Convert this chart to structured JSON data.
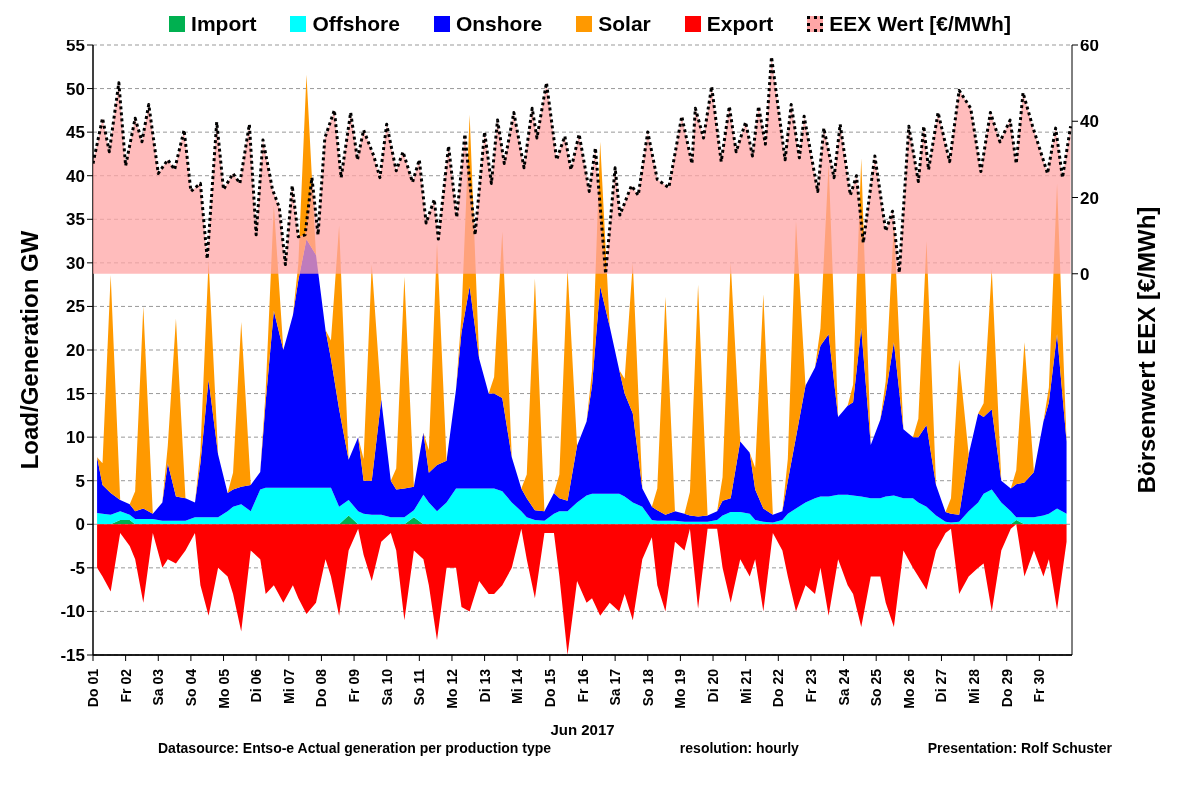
{
  "chart_data": [
    {
      "type": "area",
      "stacked": true,
      "grid": "y",
      "legend": "top",
      "ylabel": "Load/Generation  GW",
      "annotations": [
        "Datasource: Entso-e  Actual generation per production type",
        "resolution: hourly",
        "Presentation:  Rolf Schuster"
      ],
      "xlim": [
        "2017-06-01",
        "2017-07-01"
      ],
      "xticks": [
        {
          "value": "2017-06-01",
          "label": "Do 01"
        },
        {
          "value": "2017-06-02",
          "label": "Fr 02"
        },
        {
          "value": "2017-06-03",
          "label": "Sa 03"
        },
        {
          "value": "2017-06-04",
          "label": "So 04"
        },
        {
          "value": "2017-06-05",
          "label": "Mo 05"
        },
        {
          "value": "2017-06-06",
          "label": "Di 06"
        },
        {
          "value": "2017-06-07",
          "label": "Mi 07"
        },
        {
          "value": "2017-06-08",
          "label": "Do 08"
        },
        {
          "value": "2017-06-09",
          "label": "Fr 09"
        },
        {
          "value": "2017-06-10",
          "label": "Sa 10"
        },
        {
          "value": "2017-06-11",
          "label": "So 11"
        },
        {
          "value": "2017-06-12",
          "label": "Mo 12"
        },
        {
          "value": "2017-06-13",
          "label": "Di 13"
        },
        {
          "value": "2017-06-14",
          "label": "Mi 14"
        },
        {
          "value": "2017-06-15",
          "label": "Do 15"
        },
        {
          "value": "2017-06-16",
          "label": "Fr 16"
        },
        {
          "value": "2017-06-17",
          "label": "Sa 17"
        },
        {
          "value": "2017-06-18",
          "label": "So 18"
        },
        {
          "value": "2017-06-19",
          "label": "Mo 19"
        },
        {
          "value": "2017-06-20",
          "label": "Di 20"
        },
        {
          "value": "2017-06-21",
          "label": "Mi 21"
        },
        {
          "value": "2017-06-22",
          "label": "Do 22"
        },
        {
          "value": "2017-06-23",
          "label": "Fr 23"
        },
        {
          "value": "2017-06-24",
          "label": "Sa 24"
        },
        {
          "value": "2017-06-25",
          "label": "So 25"
        },
        {
          "value": "2017-06-26",
          "label": "Mo 26"
        },
        {
          "value": "2017-06-27",
          "label": "Di 27"
        },
        {
          "value": "2017-06-28",
          "label": "Mi 28"
        },
        {
          "value": "2017-06-29",
          "label": "Do 29"
        },
        {
          "value": "2017-06-30",
          "label": "Fr 30"
        }
      ],
      "ylim": [
        -15,
        55
      ],
      "yticks": [
        -15,
        -10,
        -5,
        0,
        5,
        10,
        15,
        20,
        25,
        30,
        35,
        40,
        45,
        50,
        55
      ],
      "x": [
        "2017-06-01T03:00",
        "2017-06-01T07:00",
        "2017-06-01T13:00",
        "2017-06-01T20:00",
        "2017-06-02T03:00",
        "2017-06-02T07:00",
        "2017-06-02T13:00",
        "2017-06-02T20:00",
        "2017-06-03T03:00",
        "2017-06-03T07:00",
        "2017-06-03T13:00",
        "2017-06-03T20:00",
        "2017-06-04T03:00",
        "2017-06-04T07:00",
        "2017-06-04T13:00",
        "2017-06-04T20:00",
        "2017-06-05T03:00",
        "2017-06-05T07:00",
        "2017-06-05T13:00",
        "2017-06-05T20:00",
        "2017-06-06T03:00",
        "2017-06-06T07:00",
        "2017-06-06T13:00",
        "2017-06-06T20:00",
        "2017-06-07T03:00",
        "2017-06-07T07:00",
        "2017-06-07T13:00",
        "2017-06-07T20:00",
        "2017-06-08T03:00",
        "2017-06-08T07:00",
        "2017-06-08T13:00",
        "2017-06-08T20:00",
        "2017-06-09T03:00",
        "2017-06-09T07:00",
        "2017-06-09T13:00",
        "2017-06-09T20:00",
        "2017-06-10T03:00",
        "2017-06-10T07:00",
        "2017-06-10T13:00",
        "2017-06-10T20:00",
        "2017-06-11T03:00",
        "2017-06-11T07:00",
        "2017-06-11T13:00",
        "2017-06-11T20:00",
        "2017-06-12T03:00",
        "2017-06-12T07:00",
        "2017-06-12T13:00",
        "2017-06-12T20:00",
        "2017-06-13T03:00",
        "2017-06-13T07:00",
        "2017-06-13T13:00",
        "2017-06-13T20:00",
        "2017-06-14T03:00",
        "2017-06-14T07:00",
        "2017-06-14T13:00",
        "2017-06-14T20:00",
        "2017-06-15T03:00",
        "2017-06-15T07:00",
        "2017-06-15T13:00",
        "2017-06-15T20:00",
        "2017-06-16T03:00",
        "2017-06-16T07:00",
        "2017-06-16T13:00",
        "2017-06-16T20:00",
        "2017-06-17T03:00",
        "2017-06-17T07:00",
        "2017-06-17T13:00",
        "2017-06-17T20:00",
        "2017-06-18T03:00",
        "2017-06-18T07:00",
        "2017-06-18T13:00",
        "2017-06-18T20:00",
        "2017-06-19T03:00",
        "2017-06-19T07:00",
        "2017-06-19T13:00",
        "2017-06-19T20:00",
        "2017-06-20T03:00",
        "2017-06-20T07:00",
        "2017-06-20T13:00",
        "2017-06-20T20:00",
        "2017-06-21T03:00",
        "2017-06-21T07:00",
        "2017-06-21T13:00",
        "2017-06-21T20:00",
        "2017-06-22T03:00",
        "2017-06-22T07:00",
        "2017-06-22T13:00",
        "2017-06-22T20:00",
        "2017-06-23T03:00",
        "2017-06-23T07:00",
        "2017-06-23T13:00",
        "2017-06-23T20:00",
        "2017-06-24T03:00",
        "2017-06-24T07:00",
        "2017-06-24T13:00",
        "2017-06-24T20:00",
        "2017-06-25T03:00",
        "2017-06-25T07:00",
        "2017-06-25T13:00",
        "2017-06-25T20:00",
        "2017-06-26T03:00",
        "2017-06-26T07:00",
        "2017-06-26T13:00",
        "2017-06-26T20:00",
        "2017-06-27T03:00",
        "2017-06-27T07:00",
        "2017-06-27T13:00",
        "2017-06-27T20:00",
        "2017-06-28T03:00",
        "2017-06-28T07:00",
        "2017-06-28T13:00",
        "2017-06-28T20:00",
        "2017-06-29T03:00",
        "2017-06-29T07:00",
        "2017-06-29T13:00",
        "2017-06-29T20:00",
        "2017-06-30T03:00",
        "2017-06-30T07:00",
        "2017-06-30T13:00",
        "2017-06-30T20:00"
      ],
      "series": [
        {
          "name": "Import",
          "color": "#00b050",
          "values": [
            0,
            0,
            0,
            0.5,
            0.5,
            0,
            0,
            0,
            0,
            0,
            0,
            0,
            0,
            0,
            0,
            0,
            0,
            0,
            0,
            0,
            0,
            0,
            0,
            0,
            0,
            0,
            0,
            0,
            0,
            0,
            0,
            1.0,
            0,
            0,
            0,
            0,
            0,
            0,
            0,
            0.8,
            0,
            0,
            0,
            0,
            0,
            0,
            0,
            0,
            0,
            0,
            0,
            0,
            0,
            0,
            0,
            0,
            0,
            0,
            0,
            0,
            0,
            0,
            0,
            0,
            0,
            0,
            0,
            0,
            0,
            0,
            0,
            0,
            0,
            0,
            0,
            0,
            0,
            0,
            0,
            0,
            0,
            0,
            0,
            0,
            0,
            0,
            0,
            0,
            0,
            0,
            0,
            0,
            0,
            0,
            0,
            0,
            0,
            0,
            0,
            0,
            0,
            0,
            0,
            0,
            0,
            0,
            0,
            0,
            0,
            0,
            0,
            0,
            0,
            0.5,
            0,
            0,
            0,
            0,
            0,
            0
          ]
        },
        {
          "name": "Offshore",
          "color": "#00ffff",
          "values": [
            1.3,
            1.2,
            1.1,
            1.0,
            0.6,
            0.6,
            0.6,
            0.6,
            0.4,
            0.4,
            0.4,
            0.4,
            0.8,
            0.8,
            0.8,
            0.8,
            1.5,
            2.0,
            2.3,
            1.5,
            4.0,
            4.2,
            4.2,
            4.2,
            4.2,
            4.2,
            4.2,
            4.2,
            4.2,
            4.2,
            2.0,
            1.8,
            1.5,
            1.2,
            1.1,
            1.1,
            0.8,
            0.8,
            0.8,
            0.8,
            3.4,
            2.5,
            1.5,
            2.5,
            4.1,
            4.1,
            4.1,
            4.1,
            4.1,
            4.1,
            3.8,
            2.5,
            1.5,
            0.8,
            0.5,
            0.4,
            1.2,
            1.5,
            1.5,
            2.5,
            3.3,
            3.5,
            3.5,
            3.5,
            3.5,
            3.2,
            2.5,
            2.0,
            0.5,
            0.4,
            0.4,
            0.4,
            0.3,
            0.3,
            0.3,
            0.3,
            0.5,
            1.0,
            1.4,
            1.4,
            1.2,
            0.5,
            0.3,
            0.2,
            0.5,
            1.2,
            1.8,
            2.5,
            3.0,
            3.2,
            3.2,
            3.4,
            3.4,
            3.3,
            3.2,
            3.0,
            3.0,
            3.2,
            3.3,
            3.0,
            3.0,
            2.5,
            2.0,
            1.0,
            0.3,
            0.2,
            0.3,
            1.5,
            2.5,
            3.5,
            4.0,
            2.5,
            1.5,
            0.3,
            0.8,
            0.8,
            1.0,
            1.2,
            1.8,
            1.2
          ]
        },
        {
          "name": "Onshore",
          "color": "#0000ff",
          "values": [
            6.4,
            3.3,
            2.5,
            1.3,
            1.2,
            0.9,
            1.2,
            0.6,
            2.1,
            6.6,
            2.8,
            2.6,
            1.7,
            6.2,
            15.8,
            7.2,
            2.1,
            2.0,
            2.0,
            3.0,
            2.0,
            9.9,
            20.3,
            15.8,
            19.8,
            23.8,
            28.5,
            26.7,
            18.1,
            14.8,
            11.2,
            4.6,
            8.5,
            3.8,
            3.9,
            13.2,
            4.2,
            3.2,
            3.3,
            2.7,
            7.1,
            3.4,
            5.3,
            4.8,
            11.4,
            17.9,
            23.2,
            14.9,
            10.9,
            10.9,
            10.7,
            5.2,
            2.6,
            2.2,
            1.1,
            1.1,
            2.4,
            1.5,
            1.2,
            6.5,
            8.5,
            12.4,
            23.8,
            19.2,
            14.2,
            11.8,
            10.2,
            2.1,
            1.5,
            1.2,
            0.7,
            1.1,
            0.9,
            0.7,
            0.6,
            0.7,
            1.0,
            1.7,
            1.6,
            8.1,
            7.0,
            3.5,
            1.5,
            0.9,
            1.0,
            3.8,
            8.2,
            13.4,
            15.0,
            17.3,
            18.6,
            8.9,
            10.2,
            10.7,
            19.3,
            6.1,
            9.0,
            11.8,
            17.6,
            7.9,
            7.0,
            7.5,
            9.4,
            3.5,
            1.1,
            1.0,
            0.8,
            6.5,
            10.2,
            8.8,
            9.2,
            2.5,
            2.6,
            3.8,
            4.0,
            5.2,
            10.8,
            12.8,
            20.0,
            8.3
          ]
        },
        {
          "name": "Solar",
          "color": "#ff9900",
          "values": [
            0,
            2.5,
            25.0,
            0,
            0,
            2.3,
            23.2,
            0,
            0,
            2.0,
            20.4,
            0,
            0,
            1.4,
            13.6,
            0,
            0,
            1.9,
            18.9,
            0,
            0,
            1.2,
            12.1,
            0,
            0,
            1.9,
            18.9,
            0,
            0,
            2.1,
            21.1,
            0,
            0,
            2.5,
            24.8,
            0,
            0,
            2.4,
            24.3,
            0,
            0,
            2.6,
            25.5,
            0,
            0,
            2.0,
            19.7,
            0,
            0,
            1.9,
            19.1,
            0,
            0,
            2.7,
            26.6,
            0,
            0,
            2.7,
            26.6,
            0,
            0,
            1.7,
            16.6,
            0,
            0,
            1.7,
            17.3,
            0,
            0,
            2.5,
            25.0,
            0,
            0,
            2.7,
            26.6,
            0,
            0,
            2.7,
            27.0,
            0,
            0,
            2.5,
            24.6,
            0,
            0,
            2.5,
            24.8,
            0,
            0,
            2.0,
            19.6,
            0,
            0,
            2.0,
            19.5,
            0,
            0,
            1.4,
            13.6,
            0,
            0,
            2.1,
            21.1,
            0,
            0,
            1.8,
            17.8,
            0,
            0,
            1.6,
            16.1,
            0,
            0,
            1.6,
            16.1,
            0,
            0,
            1.7,
            17.3,
            0
          ]
        }
      ]
    },
    {
      "type": "area",
      "legend": "top",
      "xlim": [
        "2017-06-01",
        "2017-07-01"
      ],
      "ylim": [
        -15,
        55
      ],
      "x": [
        "2017-06-01T03:00",
        "2017-06-01T07:00",
        "2017-06-01T13:00",
        "2017-06-01T20:00",
        "2017-06-02T03:00",
        "2017-06-02T07:00",
        "2017-06-02T13:00",
        "2017-06-02T20:00",
        "2017-06-03T03:00",
        "2017-06-03T07:00",
        "2017-06-03T13:00",
        "2017-06-03T20:00",
        "2017-06-04T03:00",
        "2017-06-04T07:00",
        "2017-06-04T13:00",
        "2017-06-04T20:00",
        "2017-06-05T03:00",
        "2017-06-05T07:00",
        "2017-06-05T13:00",
        "2017-06-05T20:00",
        "2017-06-06T03:00",
        "2017-06-06T07:00",
        "2017-06-06T13:00",
        "2017-06-06T20:00",
        "2017-06-07T03:00",
        "2017-06-07T07:00",
        "2017-06-07T13:00",
        "2017-06-07T20:00",
        "2017-06-08T03:00",
        "2017-06-08T07:00",
        "2017-06-08T13:00",
        "2017-06-08T20:00",
        "2017-06-09T03:00",
        "2017-06-09T07:00",
        "2017-06-09T13:00",
        "2017-06-09T20:00",
        "2017-06-10T03:00",
        "2017-06-10T07:00",
        "2017-06-10T13:00",
        "2017-06-10T20:00",
        "2017-06-11T03:00",
        "2017-06-11T07:00",
        "2017-06-11T13:00",
        "2017-06-11T20:00",
        "2017-06-12T03:00",
        "2017-06-12T07:00",
        "2017-06-12T13:00",
        "2017-06-12T20:00",
        "2017-06-13T03:00",
        "2017-06-13T07:00",
        "2017-06-13T13:00",
        "2017-06-13T20:00",
        "2017-06-14T03:00",
        "2017-06-14T07:00",
        "2017-06-14T13:00",
        "2017-06-14T20:00",
        "2017-06-15T03:00",
        "2017-06-15T07:00",
        "2017-06-15T13:00",
        "2017-06-15T20:00",
        "2017-06-16T03:00",
        "2017-06-16T07:00",
        "2017-06-16T13:00",
        "2017-06-16T20:00",
        "2017-06-17T03:00",
        "2017-06-17T07:00",
        "2017-06-17T13:00",
        "2017-06-17T20:00",
        "2017-06-18T03:00",
        "2017-06-18T07:00",
        "2017-06-18T13:00",
        "2017-06-18T20:00",
        "2017-06-19T03:00",
        "2017-06-19T07:00",
        "2017-06-19T13:00",
        "2017-06-19T20:00",
        "2017-06-20T03:00",
        "2017-06-20T07:00",
        "2017-06-20T13:00",
        "2017-06-20T20:00",
        "2017-06-21T03:00",
        "2017-06-21T07:00",
        "2017-06-21T13:00",
        "2017-06-21T20:00",
        "2017-06-22T03:00",
        "2017-06-22T07:00",
        "2017-06-22T13:00",
        "2017-06-22T20:00",
        "2017-06-23T03:00",
        "2017-06-23T07:00",
        "2017-06-23T13:00",
        "2017-06-23T20:00",
        "2017-06-24T03:00",
        "2017-06-24T07:00",
        "2017-06-24T13:00",
        "2017-06-24T20:00",
        "2017-06-25T03:00",
        "2017-06-25T07:00",
        "2017-06-25T13:00",
        "2017-06-25T20:00",
        "2017-06-26T03:00",
        "2017-06-26T07:00",
        "2017-06-26T13:00",
        "2017-06-26T20:00",
        "2017-06-27T03:00",
        "2017-06-27T07:00",
        "2017-06-27T13:00",
        "2017-06-27T20:00",
        "2017-06-28T03:00",
        "2017-06-28T07:00",
        "2017-06-28T13:00",
        "2017-06-28T20:00",
        "2017-06-29T03:00",
        "2017-06-29T07:00",
        "2017-06-29T13:00",
        "2017-06-29T20:00",
        "2017-06-30T03:00",
        "2017-06-30T07:00",
        "2017-06-30T13:00",
        "2017-06-30T20:00"
      ],
      "series": [
        {
          "name": "Export",
          "color": "#ff0000",
          "values": [
            -5,
            -6,
            -7.7,
            -1,
            -2.5,
            -4,
            -9,
            -1,
            -5,
            -4,
            -4.5,
            -3,
            -1,
            -7,
            -10.5,
            -5,
            -6,
            -8,
            -12.3,
            -3,
            -4,
            -8,
            -7,
            -9,
            -7,
            -8.5,
            -10.3,
            -9,
            -4,
            -6,
            -10.5,
            -3,
            -0.5,
            -3.5,
            -6.5,
            -2,
            -1,
            -3,
            -11,
            -3,
            -4,
            -7,
            -13.3,
            -5,
            -5,
            -9.5,
            -10,
            -6.5,
            -8,
            -8,
            -7,
            -5,
            -0.5,
            -4,
            -8.5,
            -1,
            -1,
            -6,
            -15,
            -6.5,
            -9,
            -8.5,
            -10.5,
            -9,
            -10,
            -8,
            -11,
            -4,
            -1.5,
            -7,
            -10,
            -2,
            -3,
            -0.5,
            -9.7,
            -0.5,
            -0.5,
            -5,
            -9,
            -4,
            -6,
            -4,
            -10,
            -1,
            -3,
            -6,
            -10,
            -7,
            -8,
            -5,
            -10.5,
            -4,
            -7,
            -8,
            -11.8,
            -6,
            -6,
            -9,
            -11.8,
            -3,
            -5,
            -6,
            -7.5,
            -3,
            -1,
            -0.5,
            -8,
            -6,
            -5,
            -4.5,
            -10,
            -3,
            -0.5,
            0,
            -6,
            -3,
            -6,
            -4,
            -9.8,
            -2
          ]
        }
      ]
    },
    {
      "type": "area",
      "legend": "top",
      "xlabel": "Jun 2017",
      "y2label": "Börsenwert  EEX  [€/MWh]",
      "xlim": [
        "2017-06-01",
        "2017-07-01"
      ],
      "y2lim": [
        -100,
        60
      ],
      "y2ticks": [
        0,
        20,
        40,
        60
      ],
      "series": [
        {
          "name": "EEX Wert [€/MWh]",
          "axis": "y2",
          "color": "#ffa6a6",
          "line_style": "dotted",
          "x": [
            "2017-06-01T00:00",
            "2017-06-01T07:00",
            "2017-06-01T12:00",
            "2017-06-01T19:00",
            "2017-06-02T00:00",
            "2017-06-02T07:00",
            "2017-06-02T12:00",
            "2017-06-02T17:00",
            "2017-06-03T00:00",
            "2017-06-03T07:00",
            "2017-06-03T12:00",
            "2017-06-03T19:00",
            "2017-06-04T00:00",
            "2017-06-04T07:00",
            "2017-06-04T12:00",
            "2017-06-04T19:00",
            "2017-06-05T00:00",
            "2017-06-05T07:00",
            "2017-06-05T12:00",
            "2017-06-05T19:00",
            "2017-06-06T00:00",
            "2017-06-06T05:00",
            "2017-06-06T12:00",
            "2017-06-06T17:00",
            "2017-06-06T21:30",
            "2017-06-07T02:30",
            "2017-06-07T07:00",
            "2017-06-07T12:00",
            "2017-06-07T17:00",
            "2017-06-07T21:30",
            "2017-06-08T02:30",
            "2017-06-08T09:30",
            "2017-06-08T14:30",
            "2017-06-08T21:30",
            "2017-06-09T02:30",
            "2017-06-09T07:00",
            "2017-06-09T14:30",
            "2017-06-09T19:00",
            "2017-06-10T00:00",
            "2017-06-10T07:00",
            "2017-06-10T12:00",
            "2017-06-10T19:00",
            "2017-06-11T00:00",
            "2017-06-11T05:00",
            "2017-06-11T11:00",
            "2017-06-11T14:00",
            "2017-06-11T21:30",
            "2017-06-12T03:30",
            "2017-06-12T09:30",
            "2017-06-12T17:00",
            "2017-06-13T00:00",
            "2017-06-13T05:00",
            "2017-06-13T09:30",
            "2017-06-13T14:30",
            "2017-06-13T21:30",
            "2017-06-14T05:00",
            "2017-06-14T11:00",
            "2017-06-14T14:30",
            "2017-06-14T21:30",
            "2017-06-15T05:00",
            "2017-06-15T11:00",
            "2017-06-15T15:30",
            "2017-06-15T21:30",
            "2017-06-16T05:00",
            "2017-06-16T09:30",
            "2017-06-16T17:00",
            "2017-06-17T00:00",
            "2017-06-17T03:30",
            "2017-06-17T12:00",
            "2017-06-17T17:00",
            "2017-06-18T00:00",
            "2017-06-18T07:00",
            "2017-06-18T15:30",
            "2017-06-19T01:00",
            "2017-06-19T08:30",
            "2017-06-19T11:00",
            "2017-06-19T17:00",
            "2017-06-19T23:00",
            "2017-06-20T06:00",
            "2017-06-20T12:00",
            "2017-06-20T17:00",
            "2017-06-21T00:00",
            "2017-06-21T05:00",
            "2017-06-21T09:30",
            "2017-06-21T14:30",
            "2017-06-21T19:00",
            "2017-06-22T05:00",
            "2017-06-22T09:30",
            "2017-06-22T15:30",
            "2017-06-22T19:00",
            "2017-06-23T05:00",
            "2017-06-23T09:30",
            "2017-06-23T17:00",
            "2017-06-23T21:30",
            "2017-06-24T05:00",
            "2017-06-24T09:30",
            "2017-06-24T14:30",
            "2017-06-24T23:00",
            "2017-06-25T07:00",
            "2017-06-25T12:00",
            "2017-06-25T17:00",
            "2017-06-26T00:00",
            "2017-06-26T07:00",
            "2017-06-26T11:00",
            "2017-06-26T14:30",
            "2017-06-26T21:30",
            "2017-06-27T06:00",
            "2017-06-27T13:00",
            "2017-06-27T21:30",
            "2017-06-28T05:00",
            "2017-06-28T12:00",
            "2017-06-28T19:00",
            "2017-06-29T02:30",
            "2017-06-29T07:00",
            "2017-06-29T12:00",
            "2017-06-29T19:00",
            "2017-06-30T06:00",
            "2017-06-30T12:00",
            "2017-06-30T17:00",
            "2017-06-30T23:00"
          ],
          "values": [
            28.9,
            40.8,
            32,
            50.1,
            28.3,
            40.8,
            34.6,
            44.4,
            26.3,
            29.9,
            27.3,
            37.7,
            21.6,
            23.7,
            3.9,
            39.8,
            22.1,
            26.3,
            23.7,
            39.2,
            10.2,
            35.1,
            22.1,
            17.4,
            2.4,
            23.1,
            9.7,
            10.2,
            25.2,
            10.2,
            35.6,
            42.9,
            25.2,
            42.3,
            29.9,
            37.7,
            30.9,
            25.2,
            39.2,
            27,
            32,
            24,
            29.9,
            13.3,
            19.5,
            9.1,
            33.5,
            14.8,
            36.6,
            10.2,
            37.2,
            23.7,
            40.3,
            28.9,
            42.3,
            27.8,
            43.4,
            35.6,
            50.1,
            29.9,
            36.1,
            27.3,
            36.6,
            21.6,
            33,
            0,
            27.8,
            15.4,
            23.1,
            20.6,
            37.2,
            24.7,
            22.6,
            41.3,
            28.9,
            43.4,
            35.6,
            49.1,
            29.4,
            43.9,
            32,
            39.8,
            30.9,
            43.9,
            34,
            56.9,
            29.9,
            44.4,
            30.4,
            41.3,
            21.6,
            38.2,
            25.2,
            39.2,
            20.6,
            25.7,
            8.1,
            30.9,
            11.2,
            16.4,
            0.3,
            38.7,
            24.2,
            38.7,
            27.3,
            42.3,
            29.4,
            48.1,
            43.4,
            26.8,
            42.3,
            34.6,
            40.3,
            28.9,
            47.5,
            38.7,
            26.3,
            38.2,
            25.2,
            38.7
          ]
        }
      ]
    }
  ]
}
